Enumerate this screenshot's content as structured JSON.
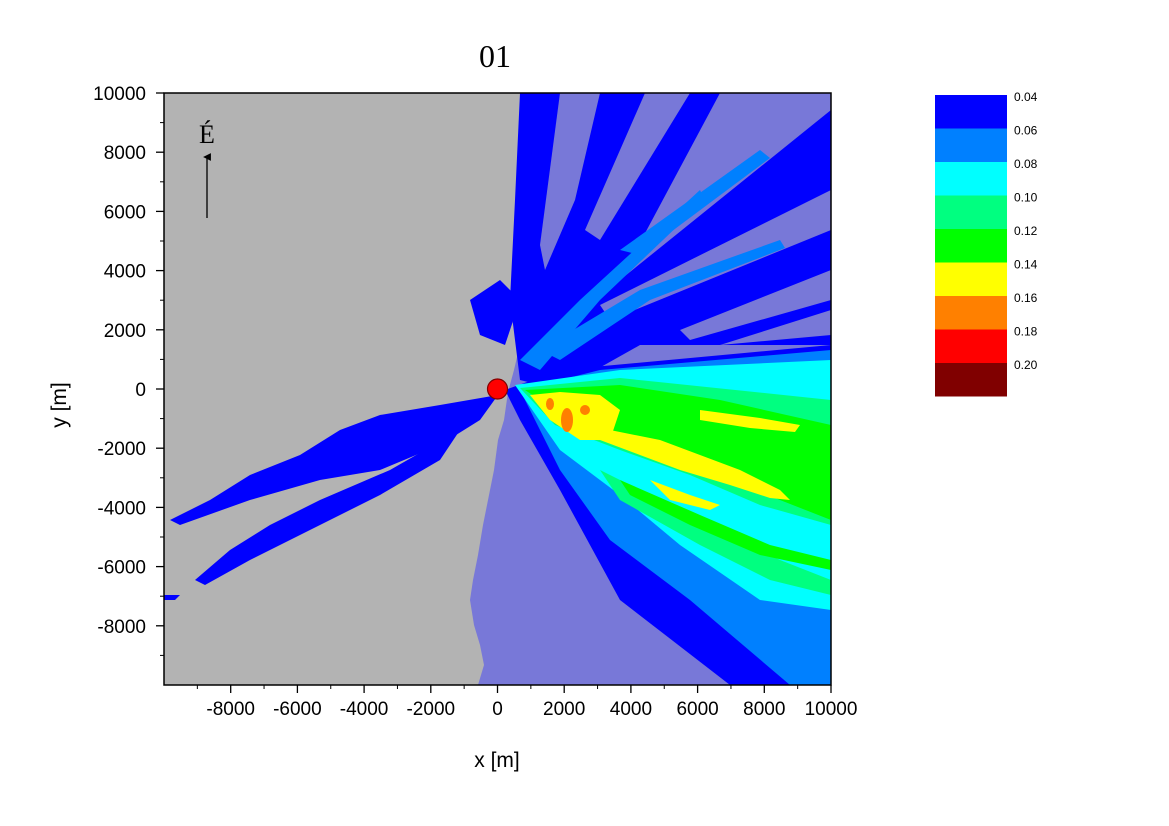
{
  "chart_data": {
    "type": "heatmap",
    "title": "01",
    "xlabel": "x [m]",
    "ylabel": "y [m]",
    "xlim": [
      -10000,
      10000
    ],
    "ylim": [
      -10000,
      10000
    ],
    "x_ticks": [
      -8000,
      -6000,
      -4000,
      -2000,
      0,
      2000,
      4000,
      6000,
      8000,
      10000
    ],
    "y_ticks": [
      10000,
      8000,
      6000,
      4000,
      2000,
      0,
      -2000,
      -4000,
      -6000,
      -8000
    ],
    "north_label": "É",
    "source_point": {
      "x": 0,
      "y": 0
    },
    "colorbar": {
      "levels": [
        "0.04",
        "0.06",
        "0.08",
        "0.10",
        "0.12",
        "0.14",
        "0.16",
        "0.18",
        "0.20"
      ],
      "colors": [
        "#0000ff",
        "#0080ff",
        "#00ffff",
        "#00ff80",
        "#00ff00",
        "#ffff00",
        "#ff8000",
        "#ff0000",
        "#800000"
      ]
    },
    "colors": {
      "land": "#b3b3b3",
      "sea": "#7878d8",
      "source": "#ff0000"
    }
  }
}
